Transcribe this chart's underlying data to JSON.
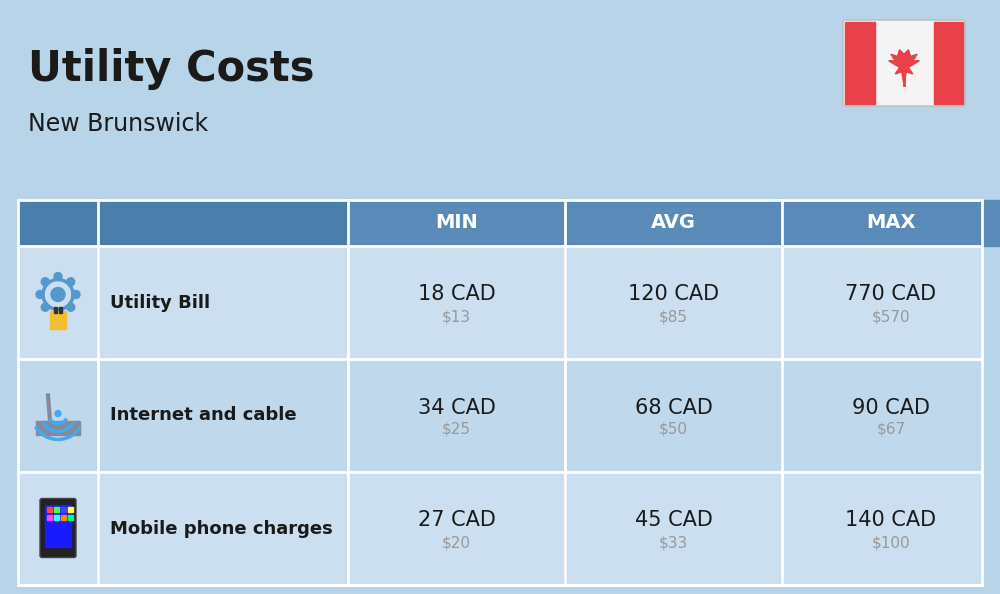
{
  "title": "Utility Costs",
  "subtitle": "New Brunswick",
  "background_color": "#b8d4e8",
  "header_bg_color": "#4a7fad",
  "header_text_color": "#ffffff",
  "row_colors": [
    "#ccdff0",
    "#c0d8ec"
  ],
  "col_header_color": "#5a8ab8",
  "table_border_color": "#ffffff",
  "rows": [
    {
      "label": "Utility Bill",
      "min_cad": "18 CAD",
      "min_usd": "$13",
      "avg_cad": "120 CAD",
      "avg_usd": "$85",
      "max_cad": "770 CAD",
      "max_usd": "$570",
      "icon": "utility"
    },
    {
      "label": "Internet and cable",
      "min_cad": "34 CAD",
      "min_usd": "$25",
      "avg_cad": "68 CAD",
      "avg_usd": "$50",
      "max_cad": "90 CAD",
      "max_usd": "$67",
      "icon": "internet"
    },
    {
      "label": "Mobile phone charges",
      "min_cad": "27 CAD",
      "min_usd": "$20",
      "avg_cad": "45 CAD",
      "avg_usd": "$33",
      "max_cad": "140 CAD",
      "max_usd": "$100",
      "icon": "phone"
    }
  ],
  "flag_red": "#e8414a",
  "flag_white": "#f5f5f5",
  "cad_fontsize": 15,
  "usd_fontsize": 11,
  "label_fontsize": 13,
  "header_fontsize": 14,
  "title_fontsize": 30,
  "subtitle_fontsize": 17,
  "usd_color": "#999999",
  "text_color": "#1a1a1a"
}
